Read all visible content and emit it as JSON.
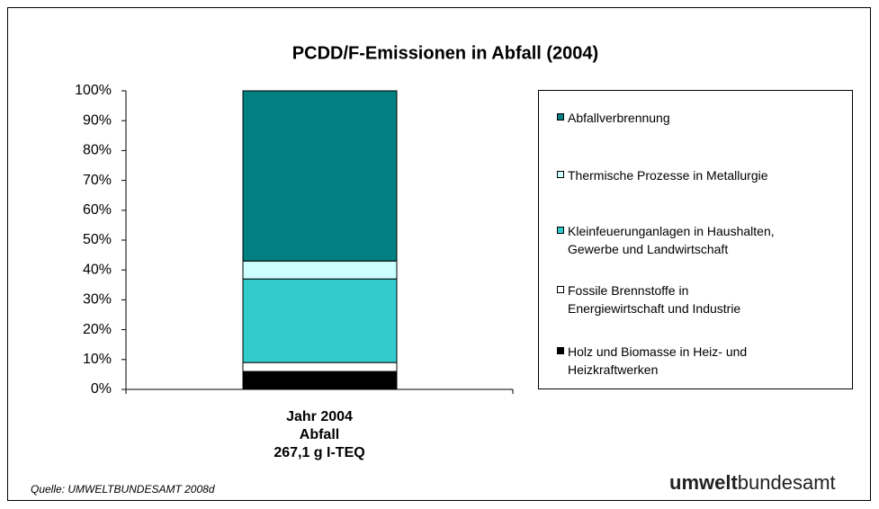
{
  "chart_data": {
    "type": "stacked_bar",
    "title": "PCDD/F-Emissionen in Abfall (2004)",
    "categories": [
      "Jahr 2004\nAbfall\n267,1 g I-TEQ"
    ],
    "series": [
      {
        "name": "Holz und Biomasse in Heiz- und\nHeizkraftwerken",
        "color": "#000000",
        "values": [
          6
        ]
      },
      {
        "name": "Fossile Brennstoffe in\nEnergiewirtschaft und Industrie",
        "color": "#ffffff",
        "values": [
          3
        ]
      },
      {
        "name": "Kleinfeuerunganlagen in Haushalten,\nGewerbe und Landwirtschaft",
        "color": "#33cccc",
        "values": [
          28
        ]
      },
      {
        "name": "Thermische Prozesse in Metallurgie",
        "color": "#ccffff",
        "values": [
          6
        ]
      },
      {
        "name": "Abfallverbrennung",
        "color": "#008080",
        "values": [
          57
        ]
      }
    ],
    "ylim": [
      0,
      100
    ],
    "yticks": [
      {
        "value": 0,
        "label": "0%"
      },
      {
        "value": 10,
        "label": "10%"
      },
      {
        "value": 20,
        "label": "20%"
      },
      {
        "value": 30,
        "label": "30%"
      },
      {
        "value": 40,
        "label": "40%"
      },
      {
        "value": 50,
        "label": "50%"
      },
      {
        "value": 60,
        "label": "60%"
      },
      {
        "value": 70,
        "label": "70%"
      },
      {
        "value": 80,
        "label": "80%"
      },
      {
        "value": 90,
        "label": "90%"
      },
      {
        "value": 100,
        "label": "100%"
      }
    ],
    "source": "Quelle: UMWELTBUNDESAMT 2008d",
    "logo": {
      "bold": "umwelt",
      "regular": "bundesamt"
    }
  }
}
